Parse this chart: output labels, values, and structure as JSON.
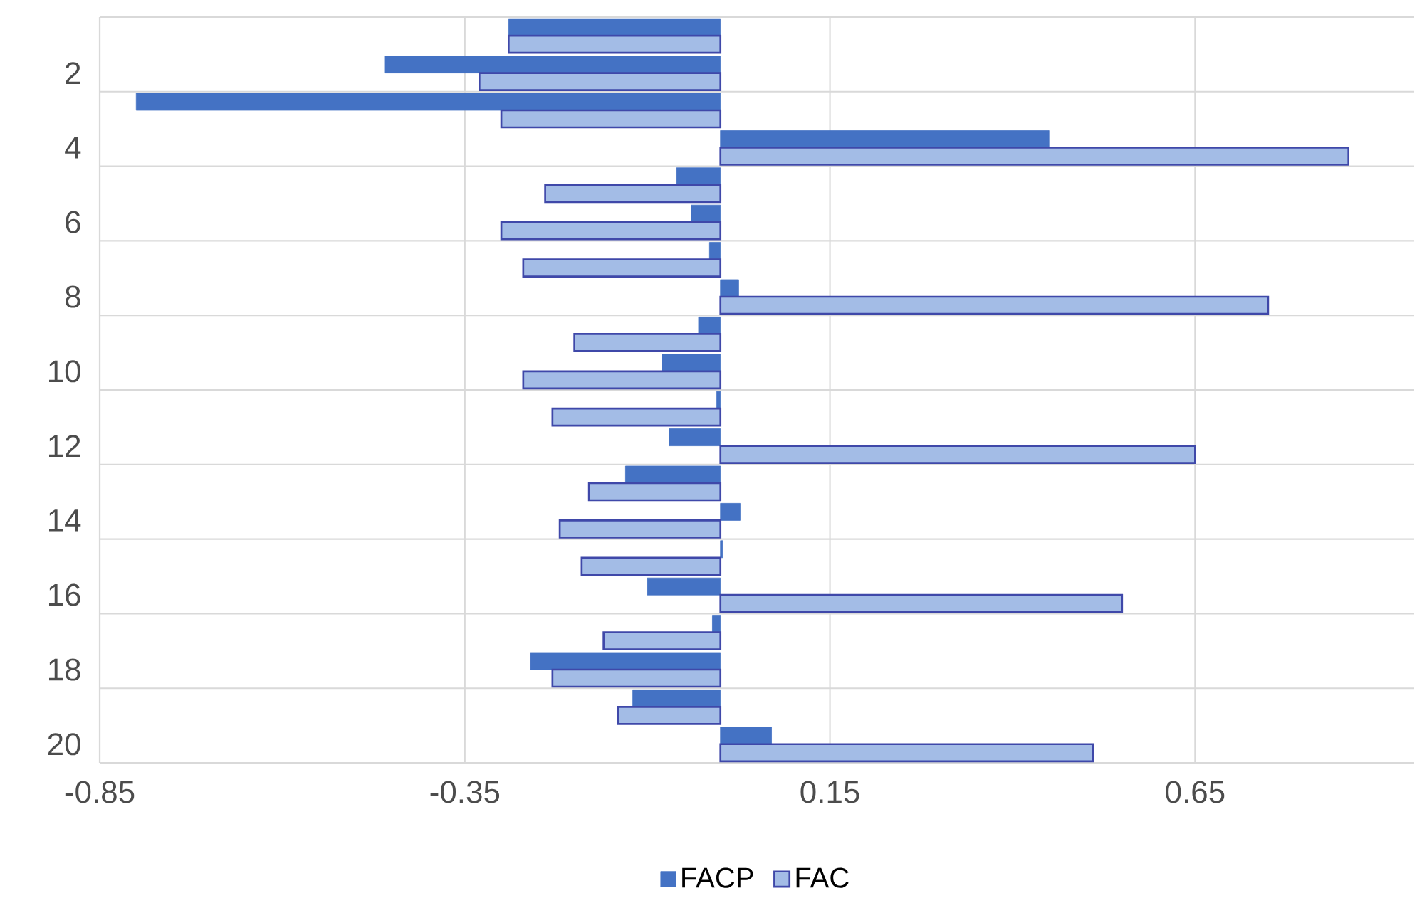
{
  "chart_data": {
    "type": "bar",
    "orientation": "horizontal",
    "categories": [
      null,
      "2",
      null,
      "4",
      null,
      "6",
      null,
      "8",
      null,
      "10",
      null,
      "12",
      null,
      "14",
      null,
      "16",
      null,
      "18",
      null,
      "20"
    ],
    "series": [
      {
        "name": "FACP",
        "color": "#4472c4",
        "values": [
          -0.29,
          -0.46,
          -0.8,
          0.45,
          -0.06,
          -0.04,
          -0.015,
          0.025,
          -0.03,
          -0.08,
          -0.005,
          -0.07,
          -0.13,
          0.027,
          0.003,
          -0.1,
          -0.011,
          -0.26,
          -0.12,
          0.07
        ]
      },
      {
        "name": "FAC",
        "color": "#a3bce6",
        "values": [
          -0.29,
          -0.33,
          -0.3,
          0.86,
          -0.24,
          -0.3,
          -0.27,
          0.75,
          -0.2,
          -0.27,
          -0.23,
          0.65,
          -0.18,
          -0.22,
          -0.19,
          0.55,
          -0.16,
          -0.23,
          -0.14,
          0.51
        ]
      }
    ],
    "xlim": [
      -0.85,
      0.95
    ],
    "xticks": [
      -0.85,
      -0.35,
      0.15,
      0.65
    ],
    "grid": true,
    "legend": "bottom"
  }
}
